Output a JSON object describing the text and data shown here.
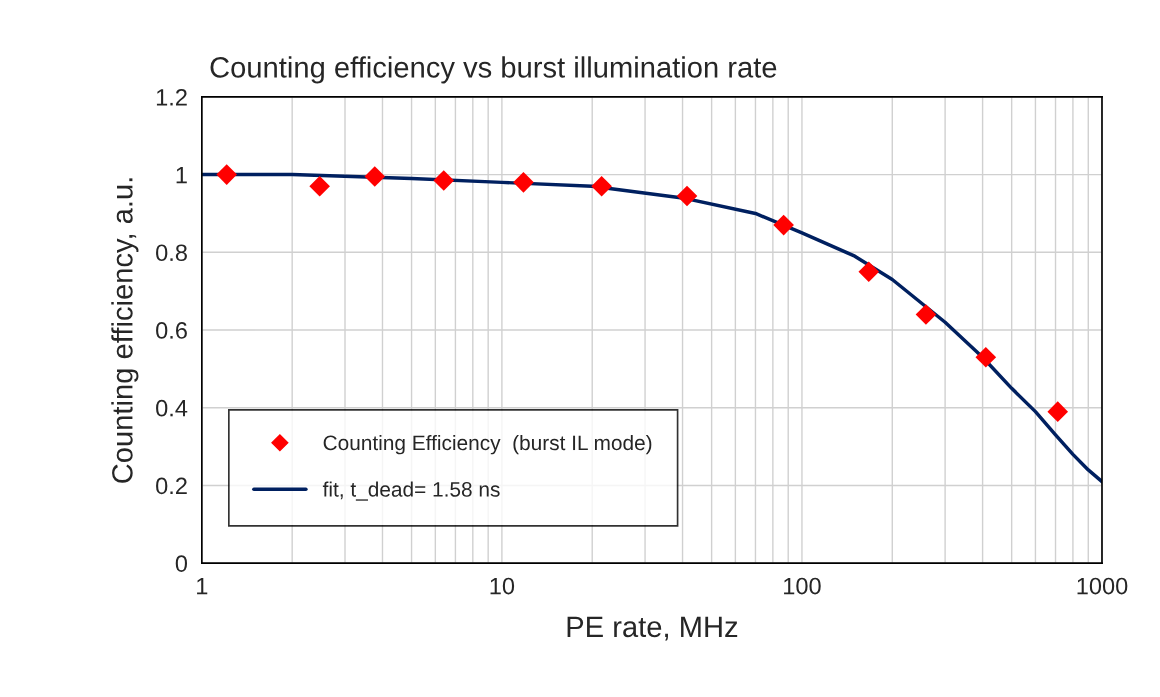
{
  "chart_data": {
    "type": "scatter",
    "title": "Counting efficiency vs burst illumination rate",
    "xlabel": "PE rate, MHz",
    "ylabel": "Counting efficiency, a.u.",
    "log": "x",
    "xlim": [
      1,
      1000
    ],
    "ylim": [
      0,
      1.2
    ],
    "xticks": [
      1,
      {
        "value": 2,
        "label": null
      },
      {
        "value": 3,
        "label": null
      },
      {
        "value": 4,
        "label": null
      },
      {
        "value": 5,
        "label": null
      },
      {
        "value": 6,
        "label": null
      },
      {
        "value": 7,
        "label": null
      },
      {
        "value": 8,
        "label": null
      },
      {
        "value": 9,
        "label": null
      },
      10,
      {
        "value": 20,
        "label": null
      },
      {
        "value": 30,
        "label": null
      },
      {
        "value": 40,
        "label": null
      },
      {
        "value": 50,
        "label": null
      },
      {
        "value": 60,
        "label": null
      },
      {
        "value": 70,
        "label": null
      },
      {
        "value": 80,
        "label": null
      },
      {
        "value": 90,
        "label": null
      },
      100,
      {
        "value": 200,
        "label": null
      },
      {
        "value": 300,
        "label": null
      },
      {
        "value": 400,
        "label": null
      },
      {
        "value": 500,
        "label": null
      },
      {
        "value": 600,
        "label": null
      },
      {
        "value": 700,
        "label": null
      },
      {
        "value": 800,
        "label": null
      },
      {
        "value": 900,
        "label": null
      },
      1000
    ],
    "yticks": [
      0,
      0.2,
      0.4,
      0.6,
      0.8,
      1,
      1.2
    ],
    "grid": true,
    "legend": "bottom left",
    "series": [
      {
        "name": "Counting Efficiency  (burst IL mode)",
        "marker": "diamond",
        "color": "#ff0000",
        "x": [
          1.21,
          2.47,
          3.77,
          6.4,
          11.8,
          21.5,
          41.4,
          86.9,
          167,
          259,
          410,
          712
        ],
        "values": [
          1.0,
          0.97,
          0.995,
          0.985,
          0.98,
          0.97,
          0.945,
          0.87,
          0.75,
          0.64,
          0.53,
          0.39
        ]
      },
      {
        "name": "fit, t_dead= 1.58 ns",
        "type": "line",
        "marker": "none",
        "line_style": "solid",
        "color": "#002060",
        "x": [
          1,
          2,
          5,
          10,
          20,
          40,
          70,
          100,
          150,
          200,
          300,
          400,
          500,
          600,
          700,
          800,
          900,
          1000
        ],
        "values": [
          1.0,
          1.0,
          0.99,
          0.98,
          0.97,
          0.94,
          0.9,
          0.85,
          0.79,
          0.73,
          0.62,
          0.53,
          0.45,
          0.39,
          0.33,
          0.28,
          0.24,
          0.21
        ]
      }
    ]
  }
}
